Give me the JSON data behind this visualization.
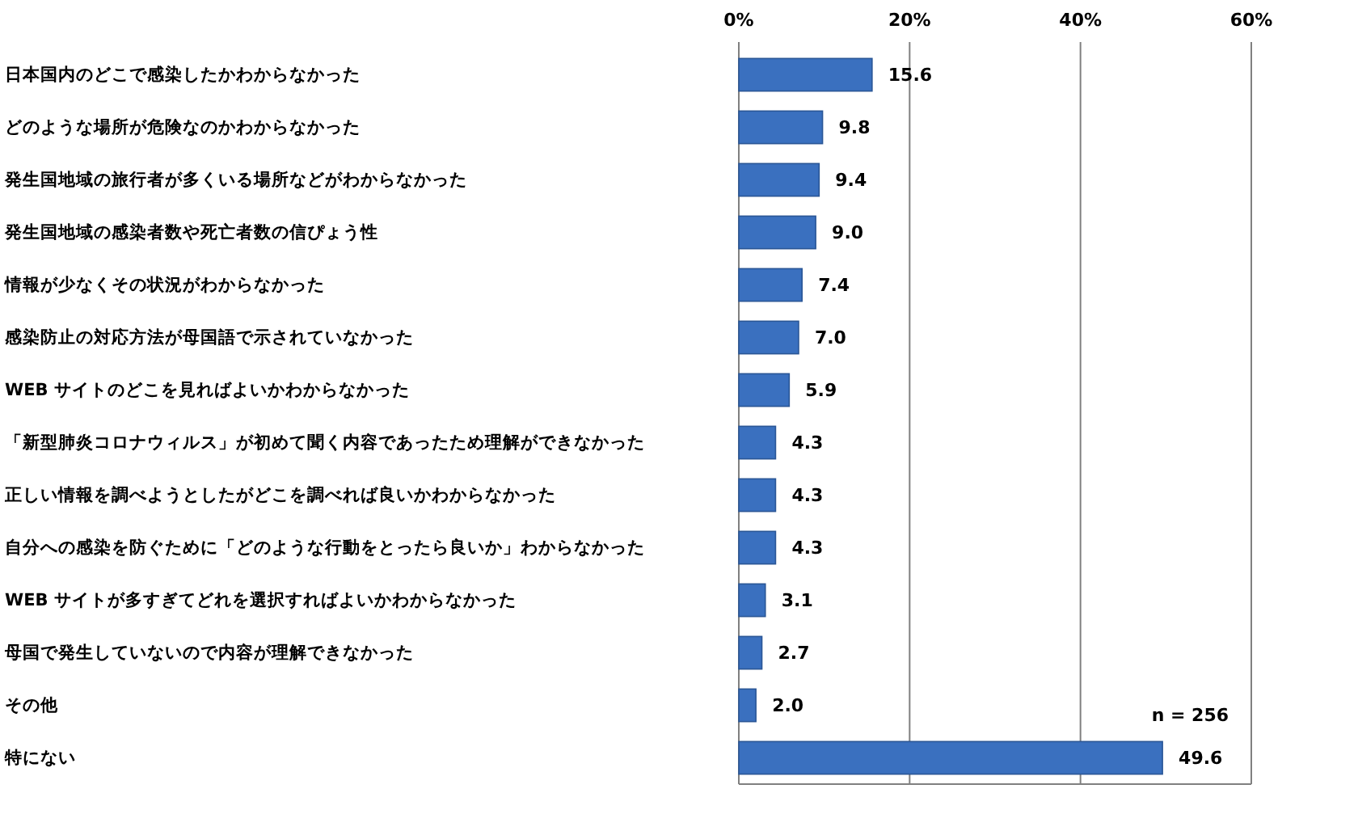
{
  "chart_data": {
    "type": "bar",
    "orientation": "horizontal",
    "categories": [
      "日本国内のどこで感染したかわからなかった",
      "どのような場所が危険なのかわからなかった",
      "発生国地域の旅行者が多くいる場所などがわからなかった",
      "発生国地域の感染者数や死亡者数の信ぴょう性",
      "情報が少なくその状況がわからなかった",
      "感染防止の対応方法が母国語で示されていなかった",
      "WEB サイトのどこを見ればよいかわからなかった",
      "「新型肺炎コロナウィルス」が初めて聞く内容であったため理解ができなかった",
      "正しい情報を調べようとしたがどこを調べれば良いかわからなかった",
      "自分への感染を防ぐために「どのような行動をとったら良いか」わからなかった",
      "WEB サイトが多すぎてどれを選択すればよいかわからなかった",
      "母国で発生していないので内容が理解できなかった",
      "その他",
      "特にない"
    ],
    "values": [
      15.6,
      9.8,
      9.4,
      9.0,
      7.4,
      7.0,
      5.9,
      4.3,
      4.3,
      4.3,
      3.1,
      2.7,
      2.0,
      49.6
    ],
    "value_labels": [
      "15.6",
      "9.8",
      "9.4",
      "9.0",
      "7.4",
      "7.0",
      "5.9",
      "4.3",
      "4.3",
      "4.3",
      "3.1",
      "2.7",
      "2.0",
      "49.6"
    ],
    "color": "#3a70bf",
    "xlim": [
      0,
      60
    ],
    "xticks": [
      {
        "value": 0,
        "label": "0%"
      },
      {
        "value": 20,
        "label": "20%"
      },
      {
        "value": 40,
        "label": "40%"
      },
      {
        "value": 60,
        "label": "60%"
      }
    ],
    "grid": "x",
    "annotations": [
      "n = 256"
    ]
  }
}
